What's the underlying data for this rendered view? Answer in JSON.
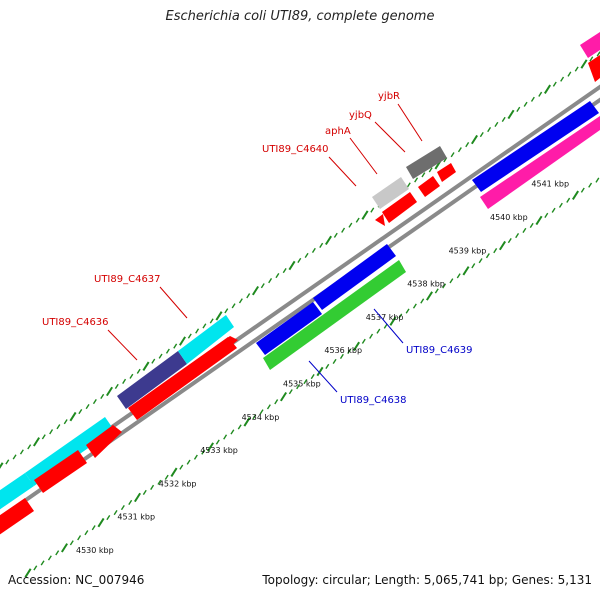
{
  "title": "Escherichia coli UTI89, complete genome",
  "footer": {
    "accession": "Accession: NC_007946",
    "summary": "Topology: circular; Length: 5,065,741 bp; Genes: 5,131"
  },
  "colors": {
    "backbone": "#8c8c8c",
    "ticks": "#1f8a1f",
    "label_red": "#d40000",
    "label_blue": "#0000c8"
  },
  "scale": {
    "labels": [
      "4530 kbp",
      "4531 kbp",
      "4532 kbp",
      "4533 kbp",
      "4534 kbp",
      "4535 kbp",
      "4536 kbp",
      "4537 kbp",
      "4538 kbp",
      "4539 kbp",
      "4540 kbp",
      "4541 kbp"
    ]
  },
  "gene_labels": [
    {
      "text": "yjbR",
      "color": "label_red"
    },
    {
      "text": "yjbQ",
      "color": "label_red"
    },
    {
      "text": "aphA",
      "color": "label_red"
    },
    {
      "text": "UTI89_C4640",
      "color": "label_red"
    },
    {
      "text": "UTI89_C4637",
      "color": "label_red"
    },
    {
      "text": "UTI89_C4636",
      "color": "label_red"
    },
    {
      "text": "UTI89_C4639",
      "color": "label_blue"
    },
    {
      "text": "UTI89_C4638",
      "color": "label_blue"
    }
  ]
}
